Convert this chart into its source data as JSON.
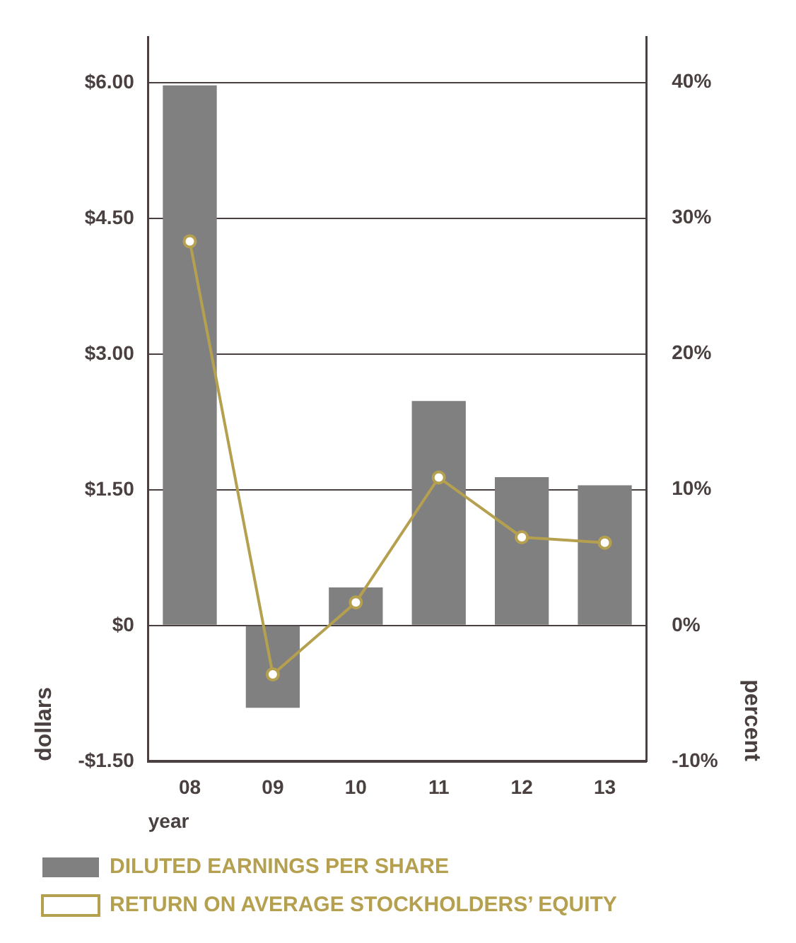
{
  "chart_data": {
    "type": "bar",
    "xlabel": "year",
    "ylabel": "dollars",
    "y2label": "percent",
    "categories": [
      "08",
      "09",
      "10",
      "11",
      "12",
      "13"
    ],
    "series": [
      {
        "name": "DILUTED EARNINGS PER SHARE",
        "color": "#808080",
        "values": [
          5.97,
          -0.91,
          0.42,
          2.48,
          1.64,
          1.55
        ]
      },
      {
        "name": "RETURN ON AVERAGE STOCKHOLDERS’ EQUITY",
        "type": "line",
        "axis": "y2",
        "color": "#b5a04f",
        "marker": "circle",
        "values": [
          28.3,
          -3.6,
          1.7,
          10.9,
          6.5,
          6.1
        ]
      }
    ],
    "ylim": [
      -1.5,
      6.5
    ],
    "yticks": [
      {
        "value": -1.5,
        "label": "-$1.50"
      },
      {
        "value": 0,
        "label": "$0"
      },
      {
        "value": 1.5,
        "label": "$1.50"
      },
      {
        "value": 3,
        "label": "$3.00"
      },
      {
        "value": 4.5,
        "label": "$4.50"
      },
      {
        "value": 6,
        "label": "$6.00"
      }
    ],
    "y2lim": [
      -10,
      43.33
    ],
    "y2ticks": [
      {
        "value": -10,
        "label": "-10%"
      },
      {
        "value": 0,
        "label": "0%"
      },
      {
        "value": 10,
        "label": "10%"
      },
      {
        "value": 20,
        "label": "20%"
      },
      {
        "value": 30,
        "label": "30%"
      },
      {
        "value": 40,
        "label": "40%"
      }
    ],
    "grid": "y",
    "legend": "bottom"
  }
}
